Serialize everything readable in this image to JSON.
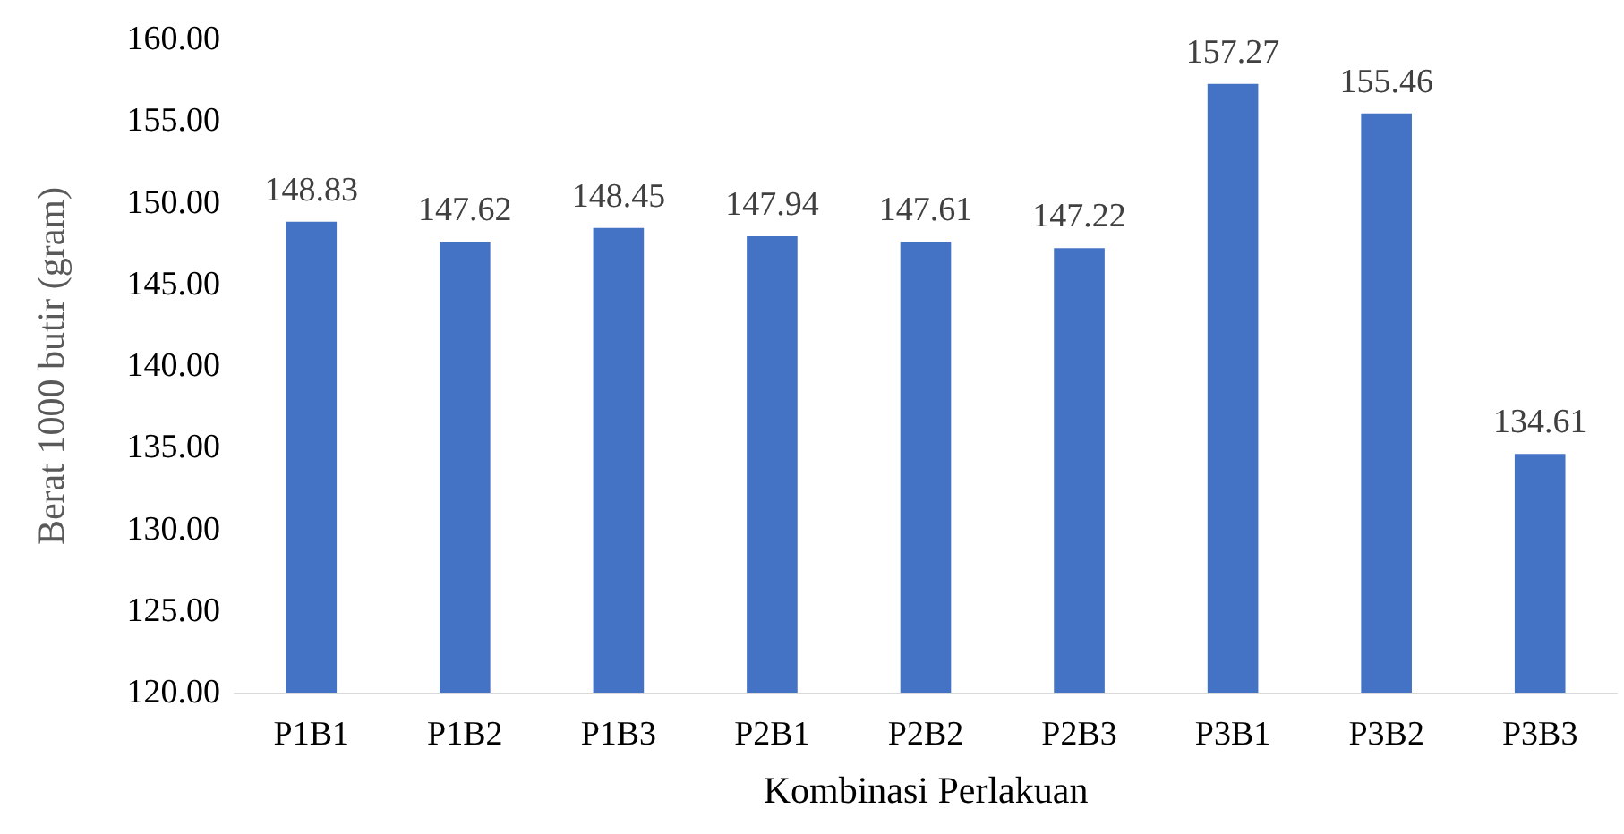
{
  "chart_data": {
    "type": "bar",
    "xlabel": "Kombinasi Perlakuan",
    "ylabel": "Berat 1000 butir (gram)",
    "categories": [
      "P1B1",
      "P1B2",
      "P1B3",
      "P2B1",
      "P2B2",
      "P2B3",
      "P3B1",
      "P3B2",
      "P3B3"
    ],
    "values": [
      148.83,
      147.62,
      148.45,
      147.94,
      147.61,
      147.22,
      157.27,
      155.46,
      134.61
    ],
    "color": "#4472c4",
    "ylim": [
      120,
      160
    ],
    "yticks": [
      {
        "value": 120,
        "label": "120.00"
      },
      {
        "value": 125,
        "label": "125.00"
      },
      {
        "value": 130,
        "label": "130.00"
      },
      {
        "value": 135,
        "label": "135.00"
      },
      {
        "value": 140,
        "label": "140.00"
      },
      {
        "value": 145,
        "label": "145.00"
      },
      {
        "value": 150,
        "label": "150.00"
      },
      {
        "value": 155,
        "label": "155.00"
      },
      {
        "value": 160,
        "label": "160.00"
      }
    ],
    "data_labels": true
  }
}
